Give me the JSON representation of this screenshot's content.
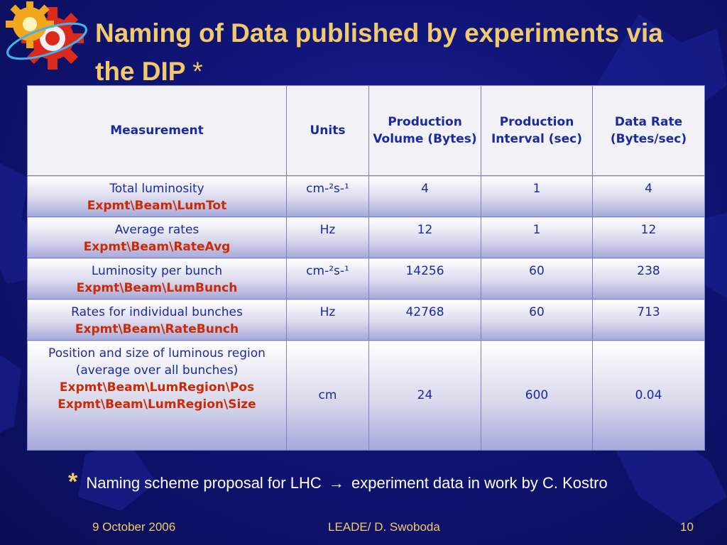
{
  "slide": {
    "title": "Naming of Data published by experiments via the DIP",
    "title_marker": "*"
  },
  "table": {
    "headers": {
      "measurement": "Measurement",
      "units": "Units",
      "volume": "Production Volume (Bytes)",
      "interval": "Production Interval (sec)",
      "rate": "Data Rate (Bytes/sec)"
    },
    "rows": [
      {
        "name": "Total luminosity",
        "path": "Expmt\\Beam\\LumTot",
        "units": "cm-²s-¹",
        "volume": "4",
        "interval": "1",
        "rate": "4"
      },
      {
        "name": "Average rates",
        "path": "Expmt\\Beam\\RateAvg",
        "units": "Hz",
        "volume": "12",
        "interval": "1",
        "rate": "12"
      },
      {
        "name": "Luminosity per bunch",
        "path": "Expmt\\Beam\\LumBunch",
        "units": "cm-²s-¹",
        "volume": "14256",
        "interval": "60",
        "rate": "238"
      },
      {
        "name": "Rates for individual bunches",
        "path": "Expmt\\Beam\\RateBunch",
        "units": "Hz",
        "volume": "42768",
        "interval": "60",
        "rate": "713"
      },
      {
        "name": "Position and size of luminous region (average over all bunches)",
        "path": "Expmt\\Beam\\LumRegion\\Pos",
        "path2": "Expmt\\Beam\\LumRegion\\Size",
        "units": "cm",
        "volume": "24",
        "interval": "600",
        "rate": "0.04"
      }
    ]
  },
  "note": {
    "marker": "*",
    "text_before": "Naming scheme proposal for LHC",
    "arrow": "→",
    "text_after": "experiment data in work by C. Kostro"
  },
  "footer": {
    "date": "9 October 2006",
    "center": "LEADE/ D. Swoboda",
    "page": "10"
  },
  "colors": {
    "title": "#f2c96b",
    "table_text": "#1a2aa0",
    "path_text": "#cc2a05",
    "background": "#101577"
  }
}
